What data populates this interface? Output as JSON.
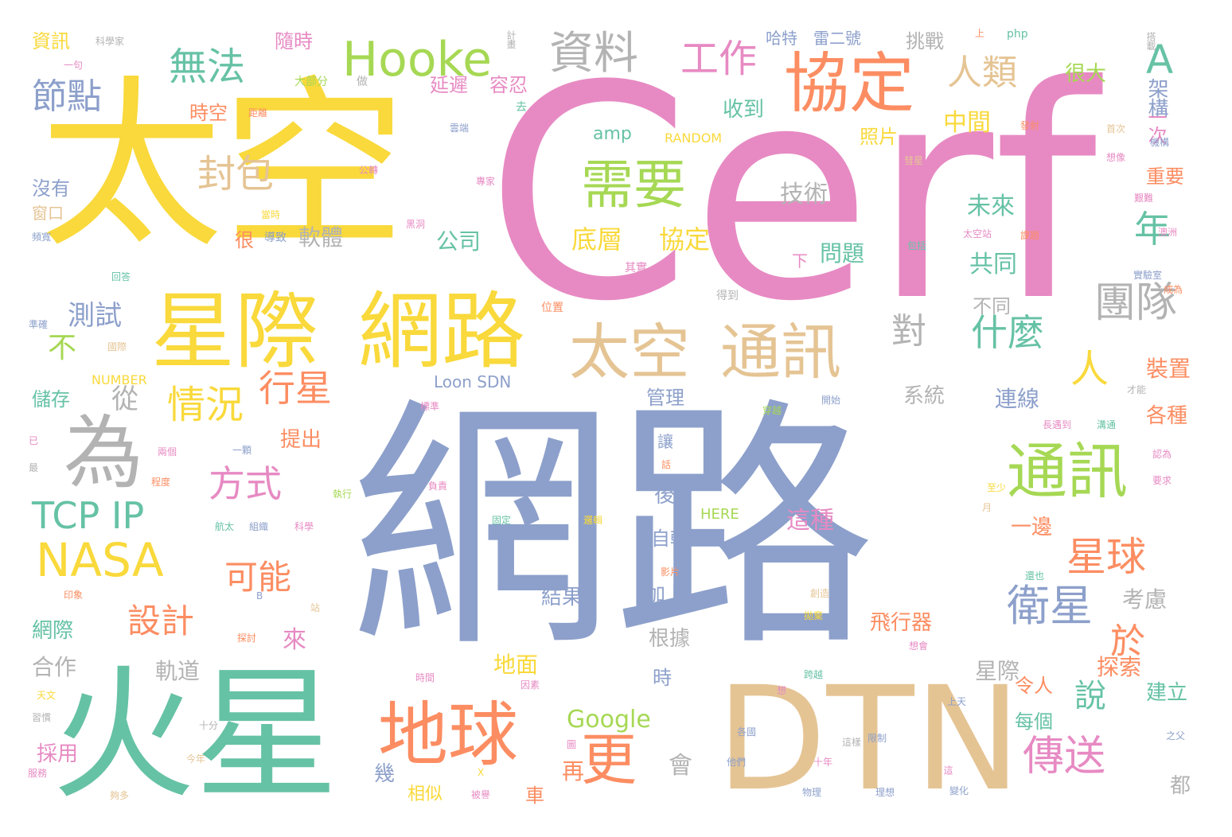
{
  "title": "",
  "palette": {
    "yellow": "#f9d93b",
    "green": "#66c2a5",
    "pink": "#e78ac3",
    "blue": "#8da0cb",
    "orange": "#fc8d62",
    "lime": "#a6d854",
    "tan": "#e5c494",
    "gray": "#b3b3b3"
  },
  "words": [
    {
      "text": "網路",
      "color": "#8da0cb"
    },
    {
      "text": "Cerf",
      "color": "#e78ac3"
    },
    {
      "text": "太空",
      "color": "#f9d93b"
    },
    {
      "text": "火星",
      "color": "#66c2a5"
    },
    {
      "text": "DTN",
      "color": "#e5c494"
    },
    {
      "text": "星際",
      "color": "#f9d93b"
    },
    {
      "text": "網路",
      "color": "#f9d93b"
    },
    {
      "text": "太空",
      "color": "#e5c494"
    },
    {
      "text": "通訊",
      "color": "#e5c494"
    },
    {
      "text": "通訊",
      "color": "#a6d854"
    },
    {
      "text": "地球",
      "color": "#fc8d62"
    },
    {
      "text": "協定",
      "color": "#fc8d62"
    },
    {
      "text": "需要",
      "color": "#a6d854"
    },
    {
      "text": "為",
      "color": "#b3b3b3"
    },
    {
      "text": "Hooke",
      "color": "#a6d854"
    },
    {
      "text": "資料",
      "color": "#b3b3b3"
    },
    {
      "text": "工作",
      "color": "#e78ac3"
    },
    {
      "text": "無法",
      "color": "#66c2a5"
    },
    {
      "text": "節點",
      "color": "#8da0cb"
    },
    {
      "text": "封包",
      "color": "#e5c494"
    },
    {
      "text": "人類",
      "color": "#e5c494"
    },
    {
      "text": "A",
      "color": "#66c2a5"
    },
    {
      "text": "年",
      "color": "#66c2a5"
    },
    {
      "text": "團隊",
      "color": "#b3b3b3"
    },
    {
      "text": "什麼",
      "color": "#66c2a5"
    },
    {
      "text": "對",
      "color": "#b3b3b3"
    },
    {
      "text": "人",
      "color": "#f9d93b"
    },
    {
      "text": "情況",
      "color": "#f9d93b"
    },
    {
      "text": "行星",
      "color": "#fc8d62"
    },
    {
      "text": "方式",
      "color": "#e78ac3"
    },
    {
      "text": "NASA",
      "color": "#f9d93b"
    },
    {
      "text": "TCP IP",
      "color": "#66c2a5"
    },
    {
      "text": "可能",
      "color": "#fc8d62"
    },
    {
      "text": "設計",
      "color": "#fc8d62"
    },
    {
      "text": "更",
      "color": "#fc8d62"
    },
    {
      "text": "星球",
      "color": "#fc8d62"
    },
    {
      "text": "衛星",
      "color": "#8da0cb"
    },
    {
      "text": "於",
      "color": "#fc8d62"
    },
    {
      "text": "傳送",
      "color": "#e78ac3"
    },
    {
      "text": "說",
      "color": "#66c2a5"
    },
    {
      "text": "不",
      "color": "#a6d854"
    },
    {
      "text": "測試",
      "color": "#8da0cb"
    },
    {
      "text": "從",
      "color": "#b3b3b3"
    },
    {
      "text": "底層",
      "color": "#f9d93b"
    },
    {
      "text": "協定",
      "color": "#f9d93b"
    },
    {
      "text": "軟體",
      "color": "#b3b3b3"
    },
    {
      "text": "公司",
      "color": "#66c2a5"
    },
    {
      "text": "技術",
      "color": "#b3b3b3"
    },
    {
      "text": "問題",
      "color": "#66c2a5"
    },
    {
      "text": "共同",
      "color": "#66c2a5"
    },
    {
      "text": "未來",
      "color": "#66c2a5"
    },
    {
      "text": "照片",
      "color": "#f9d93b"
    },
    {
      "text": "中間",
      "color": "#f9d93b"
    },
    {
      "text": "收到",
      "color": "#66c2a5"
    },
    {
      "text": "時空",
      "color": "#fc8d62"
    },
    {
      "text": "隨時",
      "color": "#e78ac3"
    },
    {
      "text": "延遲",
      "color": "#e78ac3"
    },
    {
      "text": "容忍",
      "color": "#e78ac3"
    },
    {
      "text": "挑戰",
      "color": "#b3b3b3"
    },
    {
      "text": "哈特",
      "color": "#8da0cb"
    },
    {
      "text": "雷二號",
      "color": "#8da0cb"
    },
    {
      "text": "很大",
      "color": "#a6d854"
    },
    {
      "text": "架構",
      "color": "#8da0cb"
    },
    {
      "text": "一次",
      "color": "#e78ac3"
    },
    {
      "text": "重要",
      "color": "#fc8d62"
    },
    {
      "text": "資訊",
      "color": "#f9d93b"
    },
    {
      "text": "沒有",
      "color": "#8da0cb"
    },
    {
      "text": "窗口",
      "color": "#e5c494"
    },
    {
      "text": "儲存",
      "color": "#66c2a5"
    },
    {
      "text": "網際",
      "color": "#66c2a5"
    },
    {
      "text": "合作",
      "color": "#b3b3b3"
    },
    {
      "text": "軌道",
      "color": "#b3b3b3"
    },
    {
      "text": "來",
      "color": "#e78ac3"
    },
    {
      "text": "提出",
      "color": "#fc8d62"
    },
    {
      "text": "後",
      "color": "#8da0cb"
    },
    {
      "text": "自轉",
      "color": "#8da0cb"
    },
    {
      "text": "加上",
      "color": "#8da0cb"
    },
    {
      "text": "根據",
      "color": "#b3b3b3"
    },
    {
      "text": "時",
      "color": "#8da0cb"
    },
    {
      "text": "地面",
      "color": "#f9d93b"
    },
    {
      "text": "Google",
      "color": "#a6d854"
    },
    {
      "text": "結果",
      "color": "#8da0cb"
    },
    {
      "text": "飛行器",
      "color": "#fc8d62"
    },
    {
      "text": "這種",
      "color": "#e78ac3"
    },
    {
      "text": "星際",
      "color": "#b3b3b3"
    },
    {
      "text": "探索",
      "color": "#fc8d62"
    },
    {
      "text": "考慮",
      "color": "#b3b3b3"
    },
    {
      "text": "建立",
      "color": "#66c2a5"
    },
    {
      "text": "令人",
      "color": "#fc8d62"
    },
    {
      "text": "每個",
      "color": "#66c2a5"
    },
    {
      "text": "各種",
      "color": "#fc8d62"
    },
    {
      "text": "裝置",
      "color": "#fc8d62"
    },
    {
      "text": "連線",
      "color": "#8da0cb"
    },
    {
      "text": "不同",
      "color": "#b3b3b3"
    },
    {
      "text": "系統",
      "color": "#b3b3b3"
    },
    {
      "text": "管理",
      "color": "#8da0cb"
    },
    {
      "text": "讓",
      "color": "#8da0cb"
    },
    {
      "text": "一邊",
      "color": "#fc8d62"
    },
    {
      "text": "下",
      "color": "#e78ac3"
    },
    {
      "text": "很",
      "color": "#fc8d62"
    },
    {
      "text": "幾",
      "color": "#8da0cb"
    },
    {
      "text": "相似",
      "color": "#f9d93b"
    },
    {
      "text": "再",
      "color": "#fc8d62"
    },
    {
      "text": "車",
      "color": "#fc8d62"
    },
    {
      "text": "會",
      "color": "#b3b3b3"
    },
    {
      "text": "都",
      "color": "#b3b3b3"
    },
    {
      "text": "採用",
      "color": "#e78ac3"
    },
    {
      "text": "amp",
      "color": "#66c2a5"
    },
    {
      "text": "RANDOM",
      "color": "#f9d93b"
    },
    {
      "text": "Loon SDN",
      "color": "#8da0cb"
    },
    {
      "text": "NUMBER",
      "color": "#f9d93b"
    },
    {
      "text": "HERE",
      "color": "#a6d854"
    },
    {
      "text": "php",
      "color": "#66c2a5"
    },
    {
      "text": "科學家",
      "color": "#b3b3b3"
    },
    {
      "text": "一句",
      "color": "#e78ac3"
    },
    {
      "text": "計畫",
      "color": "#b3b3b3"
    },
    {
      "text": "做",
      "color": "#b3b3b3"
    },
    {
      "text": "大部分",
      "color": "#a6d854"
    },
    {
      "text": "去",
      "color": "#66c2a5"
    },
    {
      "text": "距離",
      "color": "#fc8d62"
    },
    {
      "text": "雲端",
      "color": "#8da0cb"
    },
    {
      "text": "公轉",
      "color": "#e78ac3"
    },
    {
      "text": "專家",
      "color": "#e78ac3"
    },
    {
      "text": "當時",
      "color": "#f9d93b"
    },
    {
      "text": "黑洞",
      "color": "#e78ac3"
    },
    {
      "text": "導致",
      "color": "#8da0cb"
    },
    {
      "text": "頻寬",
      "color": "#8da0cb"
    },
    {
      "text": "回答",
      "color": "#66c2a5"
    },
    {
      "text": "準確",
      "color": "#8da0cb"
    },
    {
      "text": "國際",
      "color": "#e5c494"
    },
    {
      "text": "位置",
      "color": "#fc8d62"
    },
    {
      "text": "其實",
      "color": "#e78ac3"
    },
    {
      "text": "得到",
      "color": "#b3b3b3"
    },
    {
      "text": "包括",
      "color": "#66c2a5"
    },
    {
      "text": "太空站",
      "color": "#e78ac3"
    },
    {
      "text": "課題",
      "color": "#fc8d62"
    },
    {
      "text": "實驗室",
      "color": "#8da0cb"
    },
    {
      "text": "成為",
      "color": "#fc8d62"
    },
    {
      "text": "首次",
      "color": "#e5c494"
    },
    {
      "text": "機構",
      "color": "#8da0cb"
    },
    {
      "text": "發射",
      "color": "#fc8d62"
    },
    {
      "text": "想像",
      "color": "#e78ac3"
    },
    {
      "text": "彗星",
      "color": "#e5c494"
    },
    {
      "text": "艱難",
      "color": "#e78ac3"
    },
    {
      "text": "澳洲",
      "color": "#e78ac3"
    },
    {
      "text": "搭載",
      "color": "#b3b3b3"
    },
    {
      "text": "上",
      "color": "#fc8d62"
    },
    {
      "text": "標準",
      "color": "#e78ac3"
    },
    {
      "text": "開始",
      "color": "#8da0cb"
    },
    {
      "text": "穿越",
      "color": "#a6d854"
    },
    {
      "text": "長遇到",
      "color": "#e78ac3"
    },
    {
      "text": "溝通",
      "color": "#66c2a5"
    },
    {
      "text": "才能",
      "color": "#b3b3b3"
    },
    {
      "text": "認為",
      "color": "#e78ac3"
    },
    {
      "text": "要求",
      "color": "#e78ac3"
    },
    {
      "text": "話",
      "color": "#fc8d62"
    },
    {
      "text": "一顆",
      "color": "#8da0cb"
    },
    {
      "text": "兩個",
      "color": "#e78ac3"
    },
    {
      "text": "程度",
      "color": "#fc8d62"
    },
    {
      "text": "執行",
      "color": "#a6d854"
    },
    {
      "text": "負責",
      "color": "#e78ac3"
    },
    {
      "text": "固定",
      "color": "#66c2a5"
    },
    {
      "text": "至少",
      "color": "#f9d93b"
    },
    {
      "text": "月",
      "color": "#e5c494"
    },
    {
      "text": "已",
      "color": "#e78ac3"
    },
    {
      "text": "最",
      "color": "#b3b3b3"
    },
    {
      "text": "航太",
      "color": "#66c2a5"
    },
    {
      "text": "組織",
      "color": "#8da0cb"
    },
    {
      "text": "科學",
      "color": "#e78ac3"
    },
    {
      "text": "邏輯",
      "color": "#f9d93b"
    },
    {
      "text": "影片",
      "color": "#fc8d62"
    },
    {
      "text": "還也",
      "color": "#66c2a5"
    },
    {
      "text": "創造",
      "color": "#e5c494"
    },
    {
      "text": "拋棄",
      "color": "#f9d93b"
    },
    {
      "text": "想會",
      "color": "#e78ac3"
    },
    {
      "text": "印象",
      "color": "#fc8d62"
    },
    {
      "text": "B",
      "color": "#8da0cb"
    },
    {
      "text": "站",
      "color": "#e5c494"
    },
    {
      "text": "探討",
      "color": "#fc8d62"
    },
    {
      "text": "時間",
      "color": "#e78ac3"
    },
    {
      "text": "因素",
      "color": "#e78ac3"
    },
    {
      "text": "跨越",
      "color": "#66c2a5"
    },
    {
      "text": "天文",
      "color": "#f9d93b"
    },
    {
      "text": "十分",
      "color": "#b3b3b3"
    },
    {
      "text": "習慣",
      "color": "#b3b3b3"
    },
    {
      "text": "服務",
      "color": "#e78ac3"
    },
    {
      "text": "今年",
      "color": "#e5c494"
    },
    {
      "text": "夠多",
      "color": "#e5c494"
    },
    {
      "text": "X",
      "color": "#f9d93b"
    },
    {
      "text": "被譽",
      "color": "#e78ac3"
    },
    {
      "text": "圖",
      "color": "#e78ac3"
    },
    {
      "text": "各國",
      "color": "#8da0cb"
    },
    {
      "text": "他們",
      "color": "#8da0cb"
    },
    {
      "text": "想",
      "color": "#e78ac3"
    },
    {
      "text": "這樣",
      "color": "#b3b3b3"
    },
    {
      "text": "十年",
      "color": "#e78ac3"
    },
    {
      "text": "物理",
      "color": "#8da0cb"
    },
    {
      "text": "理想",
      "color": "#8da0cb"
    },
    {
      "text": "限制",
      "color": "#8da0cb"
    },
    {
      "text": "上天",
      "color": "#8da0cb"
    },
    {
      "text": "這",
      "color": "#e78ac3"
    },
    {
      "text": "變化",
      "color": "#8da0cb"
    },
    {
      "text": "之父",
      "color": "#8da0cb"
    }
  ]
}
